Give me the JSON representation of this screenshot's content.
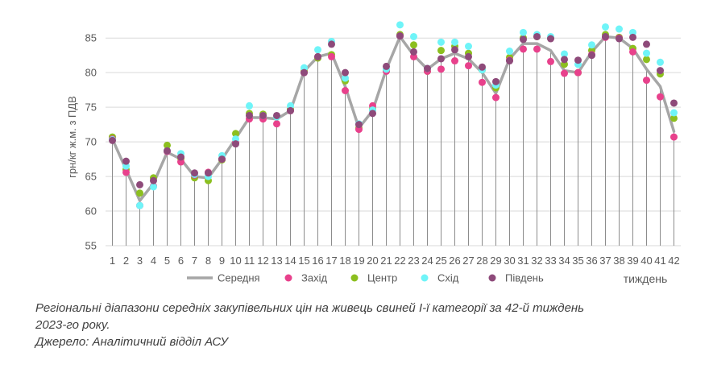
{
  "chart_data": {
    "type": "line",
    "ylabel": "грн/кг ж.м. з ПДВ",
    "xlabel": "тиждень",
    "ylim": [
      55,
      87
    ],
    "yticks": [
      55,
      60,
      65,
      70,
      75,
      80,
      85
    ],
    "x": [
      1,
      2,
      3,
      4,
      5,
      6,
      7,
      8,
      9,
      10,
      11,
      12,
      13,
      14,
      15,
      16,
      17,
      18,
      19,
      20,
      21,
      22,
      23,
      24,
      25,
      26,
      27,
      28,
      29,
      30,
      31,
      32,
      33,
      34,
      35,
      36,
      37,
      38,
      39,
      40,
      41,
      42
    ],
    "grid": "horizontal",
    "legend_position": "bottom",
    "series": [
      {
        "name": "Середня",
        "kind": "line",
        "color": "#a6a6a6",
        "values": [
          70.4,
          66.0,
          61.5,
          64.0,
          68.5,
          67.5,
          65.0,
          64.8,
          67.5,
          70.5,
          73.5,
          73.5,
          73.3,
          74.5,
          80.2,
          82.3,
          82.8,
          78.0,
          72.0,
          74.5,
          80.5,
          85.2,
          82.5,
          80.5,
          82.0,
          82.8,
          82.0,
          80.0,
          77.0,
          82.0,
          84.2,
          84.2,
          83.2,
          80.3,
          80.0,
          83.0,
          85.2,
          85.0,
          83.5,
          80.5,
          78.0,
          71.5
        ]
      },
      {
        "name": "Захід",
        "kind": "marker",
        "color": "#e8418c",
        "values": [
          70.4,
          65.6,
          60.8,
          63.6,
          68.6,
          67.1,
          65.2,
          65.6,
          67.5,
          69.9,
          73.3,
          73.3,
          72.6,
          74.5,
          80.0,
          82.3,
          82.3,
          77.4,
          71.8,
          75.2,
          80.2,
          85.3,
          82.3,
          80.2,
          80.5,
          81.7,
          81.0,
          78.6,
          76.4,
          81.8,
          83.4,
          83.4,
          81.6,
          79.9,
          80.0,
          82.6,
          85.1,
          85.0,
          83.0,
          78.9,
          76.5,
          70.7
        ]
      },
      {
        "name": "Центр",
        "kind": "marker",
        "color": "#8cbf1f",
        "values": [
          70.7,
          66.0,
          62.6,
          64.8,
          69.5,
          67.6,
          64.8,
          64.4,
          67.4,
          71.2,
          74.1,
          74.0,
          73.6,
          74.7,
          80.2,
          82.1,
          82.6,
          78.8,
          72.0,
          74.8,
          80.3,
          85.5,
          84.0,
          80.2,
          83.2,
          83.8,
          82.8,
          80.4,
          77.8,
          82.2,
          85.0,
          85.2,
          85.0,
          81.2,
          80.0,
          83.2,
          85.5,
          85.1,
          83.5,
          81.9,
          79.8,
          73.4
        ]
      },
      {
        "name": "Схід",
        "kind": "marker",
        "color": "#6ff4f8",
        "values": [
          70.3,
          66.5,
          60.8,
          63.5,
          68.7,
          68.3,
          65.3,
          65.0,
          68.0,
          70.4,
          75.2,
          73.8,
          73.6,
          75.2,
          80.7,
          83.3,
          84.5,
          79.2,
          72.6,
          74.6,
          80.5,
          86.9,
          85.2,
          80.6,
          84.4,
          84.4,
          83.8,
          80.4,
          78.2,
          83.1,
          85.8,
          85.5,
          85.2,
          82.7,
          81.2,
          84.0,
          86.6,
          86.3,
          85.8,
          82.8,
          81.5,
          74.2
        ]
      },
      {
        "name": "Південь",
        "kind": "marker",
        "color": "#8e4a7a",
        "values": [
          70.2,
          67.2,
          63.8,
          64.4,
          68.7,
          67.8,
          65.5,
          65.5,
          67.5,
          69.7,
          73.8,
          73.8,
          73.8,
          74.5,
          80.0,
          82.3,
          84.1,
          80.0,
          72.5,
          74.1,
          80.9,
          85.3,
          83.0,
          80.6,
          82.0,
          83.3,
          82.3,
          80.8,
          78.7,
          81.7,
          84.8,
          85.2,
          84.9,
          81.9,
          81.8,
          82.5,
          85.2,
          84.9,
          85.1,
          84.1,
          80.3,
          75.6
        ]
      }
    ]
  },
  "caption": {
    "line1": "Регіональні діапазони середніх закупівельних цін на живець свиней І-ї категорії за 42-й тиждень",
    "line2": "2023-го року.",
    "line3": "Джерело: Аналітичний відділ АСУ"
  }
}
